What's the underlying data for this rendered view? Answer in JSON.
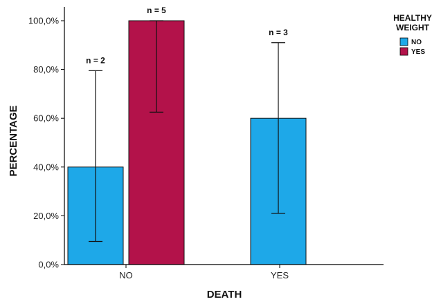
{
  "chart_data": {
    "type": "bar",
    "categories": [
      "NO",
      "YES"
    ],
    "xlabel": "DEATH",
    "ylabel": "PERCENTAGE",
    "ylim": [
      0,
      100
    ],
    "yticks": [
      "0,0%",
      "20,0%",
      "40,0%",
      "60,0%",
      "80,0%",
      "100,0%"
    ],
    "ytick_values": [
      0,
      20,
      40,
      60,
      80,
      100
    ],
    "legend": {
      "title_lines": [
        "HEALTHY",
        "WEIGHT"
      ],
      "placement": "top-right"
    },
    "series": [
      {
        "name": "NO",
        "color": "#1ea8e8",
        "values": [
          40,
          60
        ],
        "error_low": [
          9.5,
          21
        ],
        "error_high": [
          79.5,
          91
        ],
        "n_labels": [
          "n = 2",
          "n = 3"
        ]
      },
      {
        "name": "YES",
        "color": "#b3124a",
        "values": [
          100,
          null
        ],
        "error_low": [
          62.5,
          null
        ],
        "error_high": [
          100,
          null
        ],
        "n_labels": [
          "n = 5",
          ""
        ]
      }
    ]
  }
}
